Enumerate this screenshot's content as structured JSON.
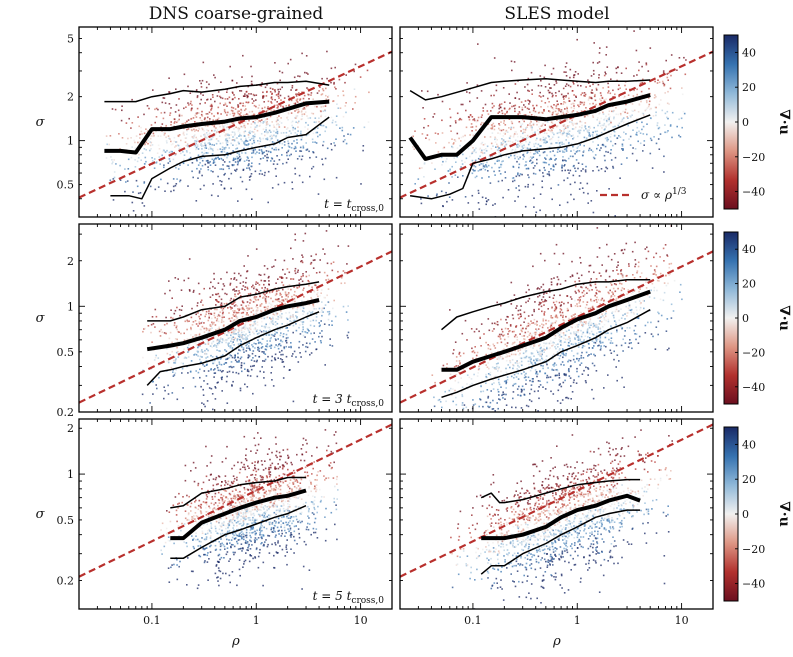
{
  "chart_data": {
    "type": "scatter",
    "column_titles": [
      "DNS coarse-grained",
      "SLES model"
    ],
    "xlabel": "ρ",
    "ylabel": "σ",
    "x_scale": "log",
    "y_scale": "log",
    "xlim": [
      0.02,
      20
    ],
    "x_ticks": [
      0.1,
      1,
      10
    ],
    "x_tick_labels": [
      "0.1",
      "1",
      "10"
    ],
    "colorbar": {
      "label": "∇·u",
      "range": [
        -50,
        50
      ],
      "ticks": [
        40,
        20,
        0,
        -20,
        -40
      ],
      "tick_labels": [
        "40",
        "20",
        "0",
        "−20",
        "−40"
      ],
      "colors": [
        "#6b0f1f",
        "#b2312e",
        "#de9684",
        "#f2f1f0",
        "#8fb8d8",
        "#3572b0",
        "#1a2a66"
      ]
    },
    "reference_line": {
      "label": "σ ∝ ρ^(1/3)",
      "label_text": "σ ∝ ρ",
      "label_exp": "1/3",
      "color": "#b8302d",
      "exponent": 0.3333
    },
    "rows": [
      {
        "time_label": "t = t",
        "time_sub": "cross,0",
        "ylim": [
          0.3,
          6
        ],
        "y_ticks": [
          0.5,
          1,
          2,
          5
        ],
        "y_tick_labels": [
          "0.5",
          "1",
          "2",
          "5"
        ],
        "ref_amplitude": 1.5,
        "panels": [
          {
            "name": "DNS coarse-grained",
            "cloud_rho": [
              0.035,
              12
            ],
            "cloud_sigma_center": 1.25,
            "cloud_slope": 0.12,
            "cloud_spread": 0.32,
            "median": {
              "rho": [
                0.035,
                0.05,
                0.07,
                0.1,
                0.15,
                0.2,
                0.3,
                0.5,
                0.7,
                1.0,
                1.5,
                2.0,
                3.0,
                5.0
              ],
              "sigma": [
                0.85,
                0.85,
                0.83,
                1.2,
                1.2,
                1.25,
                1.3,
                1.35,
                1.42,
                1.45,
                1.55,
                1.65,
                1.8,
                1.85
              ]
            },
            "upper": {
              "rho": [
                0.035,
                0.07,
                0.1,
                0.15,
                0.2,
                0.3,
                0.5,
                0.7,
                1.0,
                1.5,
                2.0,
                3.0,
                5.0
              ],
              "sigma": [
                1.85,
                1.85,
                2.0,
                2.1,
                2.2,
                2.15,
                2.25,
                2.35,
                2.4,
                2.5,
                2.5,
                2.55,
                2.4
              ]
            },
            "lower": {
              "rho": [
                0.04,
                0.06,
                0.08,
                0.1,
                0.15,
                0.2,
                0.3,
                0.5,
                0.7,
                1.0,
                1.5,
                2.0,
                3.0,
                5.0
              ],
              "sigma": [
                0.42,
                0.42,
                0.4,
                0.55,
                0.65,
                0.72,
                0.78,
                0.8,
                0.85,
                0.9,
                0.95,
                1.05,
                1.1,
                1.45
              ]
            }
          },
          {
            "name": "SLES model",
            "cloud_rho": [
              0.025,
              12
            ],
            "cloud_sigma_center": 1.3,
            "cloud_slope": 0.15,
            "cloud_spread": 0.35,
            "median": {
              "rho": [
                0.025,
                0.035,
                0.05,
                0.07,
                0.1,
                0.15,
                0.2,
                0.3,
                0.5,
                0.7,
                1.0,
                1.5,
                2.0,
                3.0,
                5.0
              ],
              "sigma": [
                1.05,
                0.75,
                0.8,
                0.8,
                1.0,
                1.45,
                1.45,
                1.45,
                1.4,
                1.45,
                1.5,
                1.6,
                1.75,
                1.85,
                2.05
              ]
            },
            "upper": {
              "rho": [
                0.025,
                0.035,
                0.05,
                0.1,
                0.15,
                0.2,
                0.3,
                0.5,
                0.7,
                1.0,
                1.5,
                2.0,
                3.0,
                5.0
              ],
              "sigma": [
                2.2,
                1.9,
                2.0,
                2.3,
                2.5,
                2.55,
                2.6,
                2.65,
                2.6,
                2.55,
                2.5,
                2.55,
                2.55,
                2.6
              ]
            },
            "lower": {
              "rho": [
                0.025,
                0.04,
                0.06,
                0.08,
                0.1,
                0.15,
                0.2,
                0.3,
                0.5,
                0.7,
                1.0,
                1.5,
                2.0,
                3.0,
                5.0
              ],
              "sigma": [
                0.42,
                0.4,
                0.43,
                0.47,
                0.7,
                0.75,
                0.8,
                0.85,
                0.88,
                0.9,
                0.95,
                1.05,
                1.15,
                1.3,
                1.5
              ]
            }
          }
        ]
      },
      {
        "time_label": "t = 3 t",
        "time_sub": "cross,0",
        "ylim": [
          0.2,
          3.5
        ],
        "y_ticks": [
          0.2,
          0.5,
          1,
          2
        ],
        "y_tick_labels": [
          "0.2",
          "0.5",
          "1",
          "2"
        ],
        "ref_amplitude": 0.85,
        "panels": [
          {
            "name": "DNS coarse-grained",
            "cloud_rho": [
              0.08,
              8
            ],
            "cloud_sigma_center": 0.8,
            "cloud_slope": 0.22,
            "cloud_spread": 0.32,
            "median": {
              "rho": [
                0.09,
                0.15,
                0.2,
                0.3,
                0.5,
                0.7,
                1.0,
                1.5,
                2.0,
                3.0,
                4.0
              ],
              "sigma": [
                0.52,
                0.55,
                0.57,
                0.62,
                0.7,
                0.8,
                0.85,
                0.95,
                1.0,
                1.05,
                1.1
              ]
            },
            "upper": {
              "rho": [
                0.09,
                0.15,
                0.2,
                0.3,
                0.5,
                0.7,
                1.0,
                1.5,
                2.0,
                3.0,
                4.0
              ],
              "sigma": [
                0.8,
                0.8,
                0.85,
                0.95,
                1.0,
                1.15,
                1.2,
                1.3,
                1.35,
                1.4,
                1.45
              ]
            },
            "lower": {
              "rho": [
                0.09,
                0.12,
                0.15,
                0.2,
                0.3,
                0.5,
                0.7,
                1.0,
                1.5,
                2.0,
                3.0,
                4.0
              ],
              "sigma": [
                0.3,
                0.37,
                0.38,
                0.4,
                0.42,
                0.47,
                0.55,
                0.62,
                0.7,
                0.75,
                0.85,
                0.92
              ]
            }
          },
          {
            "name": "SLES model",
            "cloud_rho": [
              0.04,
              10
            ],
            "cloud_sigma_center": 0.75,
            "cloud_slope": 0.32,
            "cloud_spread": 0.35,
            "median": {
              "rho": [
                0.05,
                0.07,
                0.1,
                0.15,
                0.2,
                0.3,
                0.5,
                0.7,
                1.0,
                1.5,
                2.0,
                3.0,
                5.0
              ],
              "sigma": [
                0.38,
                0.38,
                0.43,
                0.47,
                0.5,
                0.55,
                0.62,
                0.72,
                0.82,
                0.9,
                1.0,
                1.1,
                1.25
              ]
            },
            "upper": {
              "rho": [
                0.05,
                0.07,
                0.1,
                0.15,
                0.2,
                0.3,
                0.5,
                0.7,
                1.0,
                1.5,
                2.0,
                3.0,
                5.0
              ],
              "sigma": [
                0.7,
                0.85,
                0.92,
                1.0,
                1.05,
                1.15,
                1.25,
                1.3,
                1.4,
                1.45,
                1.45,
                1.5,
                1.5
              ]
            },
            "lower": {
              "rho": [
                0.05,
                0.07,
                0.1,
                0.15,
                0.2,
                0.3,
                0.5,
                0.7,
                1.0,
                1.5,
                2.0,
                3.0,
                5.0
              ],
              "sigma": [
                0.25,
                0.27,
                0.3,
                0.33,
                0.35,
                0.38,
                0.43,
                0.5,
                0.55,
                0.62,
                0.7,
                0.78,
                0.95
              ]
            }
          }
        ]
      },
      {
        "time_label": "t = 5 t",
        "time_sub": "cross,0",
        "ylim": [
          0.13,
          2.3
        ],
        "y_ticks": [
          0.2,
          0.5,
          1,
          2
        ],
        "y_tick_labels": [
          "0.2",
          "0.5",
          "1",
          "2"
        ],
        "ref_amplitude": 0.78,
        "panels": [
          {
            "name": "DNS coarse-grained",
            "cloud_rho": [
              0.12,
              6
            ],
            "cloud_sigma_center": 0.6,
            "cloud_slope": 0.18,
            "cloud_spread": 0.3,
            "median": {
              "rho": [
                0.15,
                0.2,
                0.3,
                0.5,
                0.7,
                1.0,
                1.5,
                2.0,
                3.0
              ],
              "sigma": [
                0.38,
                0.38,
                0.48,
                0.55,
                0.6,
                0.65,
                0.7,
                0.72,
                0.78
              ]
            },
            "upper": {
              "rho": [
                0.15,
                0.2,
                0.3,
                0.5,
                0.7,
                1.0,
                1.5,
                2.0,
                3.0
              ],
              "sigma": [
                0.6,
                0.62,
                0.75,
                0.8,
                0.85,
                0.88,
                0.9,
                0.95,
                0.95
              ]
            },
            "lower": {
              "rho": [
                0.15,
                0.2,
                0.3,
                0.5,
                0.7,
                1.0,
                1.5,
                2.0,
                3.0
              ],
              "sigma": [
                0.28,
                0.28,
                0.33,
                0.4,
                0.43,
                0.47,
                0.52,
                0.55,
                0.62
              ]
            }
          },
          {
            "name": "SLES model",
            "cloud_rho": [
              0.06,
              8
            ],
            "cloud_sigma_center": 0.55,
            "cloud_slope": 0.25,
            "cloud_spread": 0.33,
            "median": {
              "rho": [
                0.12,
                0.15,
                0.2,
                0.3,
                0.5,
                0.7,
                1.0,
                1.5,
                2.0,
                3.0,
                4.0
              ],
              "sigma": [
                0.38,
                0.38,
                0.38,
                0.4,
                0.45,
                0.52,
                0.58,
                0.62,
                0.67,
                0.72,
                0.67
              ]
            },
            "upper": {
              "rho": [
                0.12,
                0.15,
                0.18,
                0.2,
                0.3,
                0.5,
                0.7,
                1.0,
                1.5,
                2.0,
                3.0,
                4.0
              ],
              "sigma": [
                0.7,
                0.75,
                0.65,
                0.65,
                0.68,
                0.75,
                0.8,
                0.85,
                0.88,
                0.9,
                0.92,
                0.92
              ]
            },
            "lower": {
              "rho": [
                0.12,
                0.15,
                0.2,
                0.3,
                0.5,
                0.7,
                1.0,
                1.5,
                2.0,
                3.0,
                4.0
              ],
              "sigma": [
                0.22,
                0.25,
                0.25,
                0.3,
                0.35,
                0.4,
                0.45,
                0.52,
                0.55,
                0.58,
                0.58
              ]
            }
          }
        ]
      }
    ]
  }
}
